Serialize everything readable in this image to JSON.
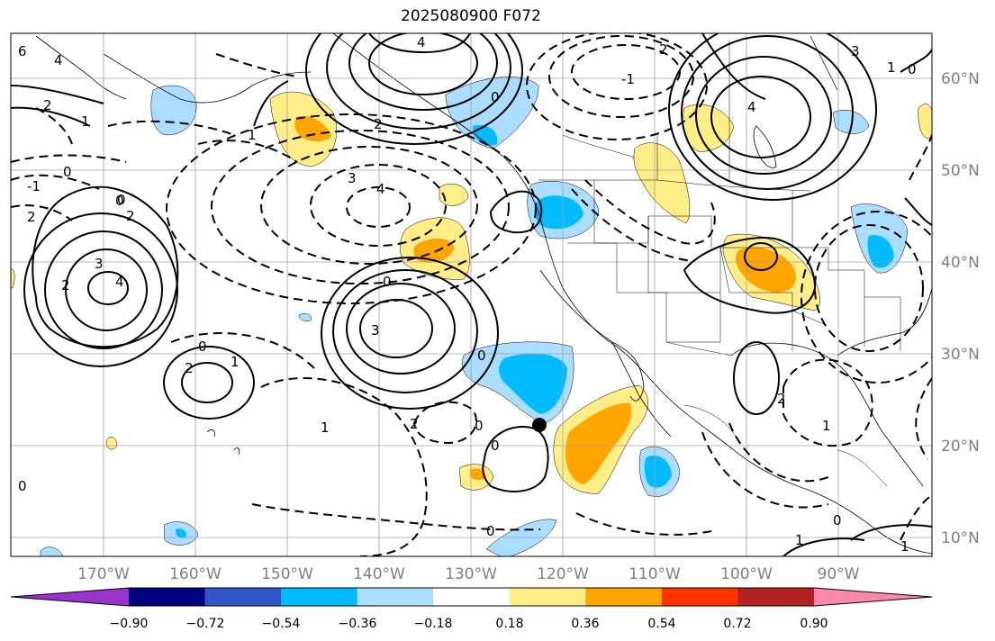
{
  "title": "2025080900 F072",
  "map": {
    "lon_range": [
      -180,
      -80
    ],
    "lat_range": [
      8,
      65
    ],
    "lat_labels": [
      "60°N",
      "50°N",
      "40°N",
      "30°N",
      "20°N",
      "10°N"
    ],
    "lon_labels": [
      "170°W",
      "160°W",
      "150°W",
      "140°W",
      "130°W",
      "120°W",
      "110°W",
      "100°W",
      "90°W"
    ],
    "grid": true,
    "contour_labels": [
      "6",
      "4",
      "2",
      "1",
      "0",
      "-1",
      "2",
      "4",
      "1",
      "-1",
      "0",
      "2",
      "3",
      "4",
      "0",
      "2",
      "3",
      "4",
      "0",
      "3",
      "2",
      "0",
      "1",
      "2",
      "0",
      "2",
      "0",
      "1",
      "2",
      "0",
      "0",
      "0",
      "1",
      "2",
      "3",
      "4",
      "1",
      "0",
      "0",
      "1",
      "0",
      "1"
    ],
    "marker": {
      "type": "dot",
      "lon": -122.5,
      "lat": 22.5,
      "color": "#000000"
    }
  },
  "colorbar": {
    "colors": [
      "#9933cc",
      "#000080",
      "#3355cc",
      "#00bbff",
      "#aaddff",
      "#ffffff",
      "#ffee88",
      "#ffa500",
      "#ff3300",
      "#b22222",
      "#ff88aa"
    ],
    "tick_labels": [
      "−0.90",
      "−0.72",
      "−0.54",
      "−0.36",
      "−0.18",
      "0.18",
      "0.36",
      "0.54",
      "0.72",
      "0.90"
    ],
    "extend": "both"
  },
  "shaded_regions": [
    {
      "color": "#aaddff"
    },
    {
      "color": "#00bbff"
    },
    {
      "color": "#ffee88"
    },
    {
      "color": "#ffa500"
    }
  ]
}
